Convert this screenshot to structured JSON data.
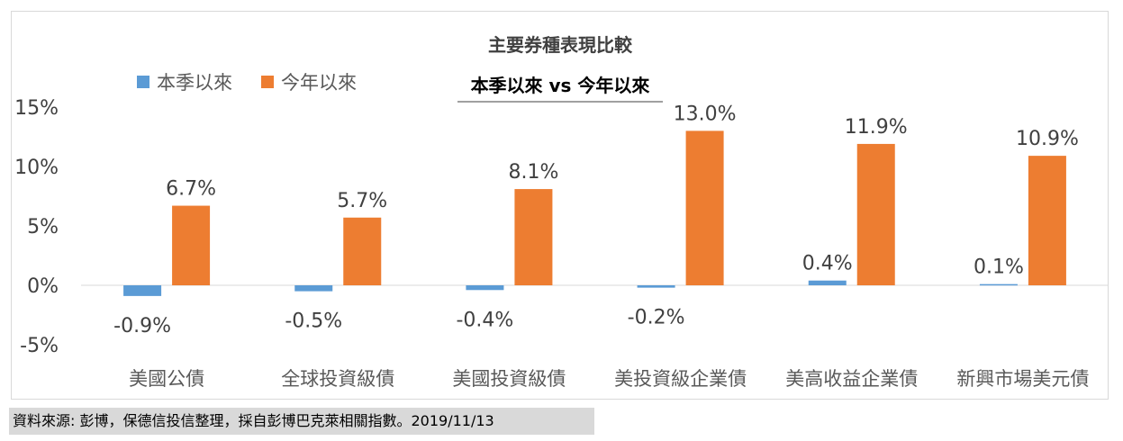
{
  "chart_data": {
    "type": "bar",
    "title": "主要券種表現比較",
    "subtitle": "本季以來 vs 今年以來",
    "categories": [
      "美國公債",
      "全球投資級債",
      "美國投資級債",
      "美投資級企業債",
      "美高收益企業債",
      "新興市場美元債"
    ],
    "series": [
      {
        "name": "本季以來",
        "color": "#5b9bd5",
        "values": [
          -0.9,
          -0.5,
          -0.4,
          -0.2,
          0.4,
          0.1
        ],
        "labels": [
          "-0.9%",
          "-0.5%",
          "-0.4%",
          "-0.2%",
          "0.4%",
          "0.1%"
        ]
      },
      {
        "name": "今年以來",
        "color": "#ed7d31",
        "values": [
          6.7,
          5.7,
          8.1,
          13.0,
          11.9,
          10.9
        ],
        "labels": [
          "6.7%",
          "5.7%",
          "8.1%",
          "13.0%",
          "11.9%",
          "10.9%"
        ]
      }
    ],
    "yticks": [
      "15%",
      "10%",
      "5%",
      "0%",
      "-5%"
    ],
    "ylim": [
      -5,
      15
    ],
    "legend_position": "top-left",
    "grid": false
  },
  "source_note": "資料來源: 彭博，保德信投信整理，採自彭博巴克萊相關指數。2019/11/13"
}
